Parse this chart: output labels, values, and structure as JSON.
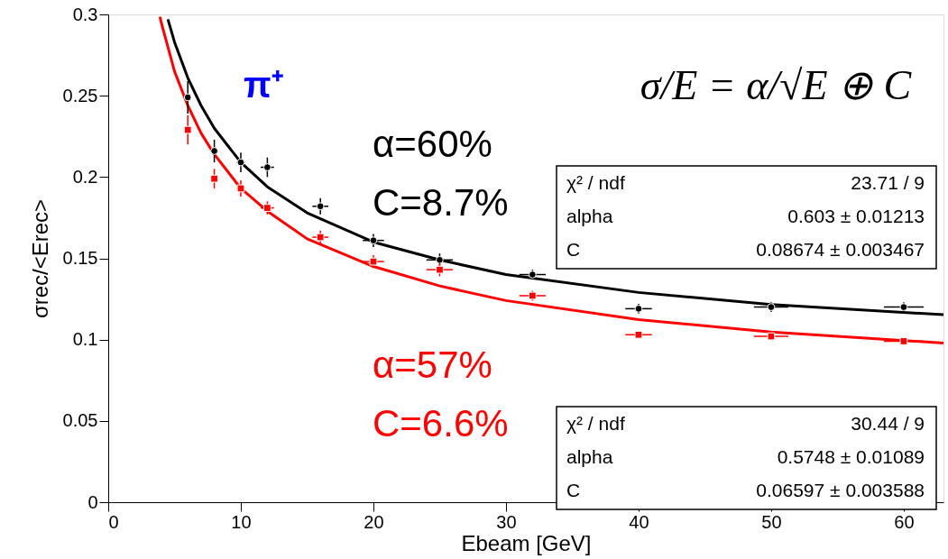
{
  "chart_data": {
    "type": "scatter",
    "xlabel": "Ebeam [GeV]",
    "ylabel": "σrec/<Erec>",
    "xlim": [
      0,
      63
    ],
    "ylim": [
      0,
      0.3
    ],
    "xticks": [
      0,
      10,
      20,
      30,
      40,
      50,
      60
    ],
    "yticks": [
      0,
      0.05,
      0.1,
      0.15,
      0.2,
      0.25,
      0.3
    ],
    "grid": false,
    "series": [
      {
        "color": "#000000",
        "marker": "circle",
        "x": [
          6,
          8,
          10,
          12,
          16,
          20,
          25,
          32,
          40,
          50,
          60
        ],
        "values": [
          0.249,
          0.216,
          0.209,
          0.206,
          0.182,
          0.161,
          0.149,
          0.14,
          0.119,
          0.12,
          0.12
        ],
        "errors": [
          0.01,
          0.007,
          0.006,
          0.006,
          0.005,
          0.004,
          0.004,
          0.003,
          0.003,
          0.003,
          0.003
        ],
        "xerrors": [
          0.2,
          0.2,
          0.3,
          0.5,
          0.6,
          0.8,
          1,
          1,
          1,
          1.3,
          1.5
        ]
      },
      {
        "color": "#ff0000",
        "marker": "square",
        "x": [
          6,
          8,
          10,
          12,
          16,
          20,
          25,
          32,
          40,
          50,
          60
        ],
        "values": [
          0.229,
          0.199,
          0.193,
          0.181,
          0.163,
          0.148,
          0.143,
          0.127,
          0.103,
          0.102,
          0.099
        ],
        "errors": [
          0.009,
          0.006,
          0.005,
          0.004,
          0.004,
          0.004,
          0.004,
          0.003,
          0.002,
          0.002,
          0.002
        ],
        "xerrors": [
          0.2,
          0.2,
          0.3,
          0.5,
          0.6,
          0.8,
          1,
          1,
          1,
          1.3,
          1.5
        ]
      },
      {
        "type": "line",
        "color": "#000000",
        "line_style": "solid",
        "x": [
          4.5,
          5,
          6,
          7,
          8,
          10,
          12,
          15,
          20,
          25,
          30,
          40,
          50,
          63
        ],
        "values": [
          0.297,
          0.283,
          0.261,
          0.244,
          0.23,
          0.209,
          0.194,
          0.178,
          0.16,
          0.149,
          0.14,
          0.129,
          0.1216,
          0.1153
        ]
      },
      {
        "type": "line",
        "color": "#ff0000",
        "line_style": "solid",
        "x": [
          3.9,
          4,
          5,
          6,
          7,
          8,
          10,
          12,
          15,
          20,
          25,
          30,
          40,
          50,
          63
        ],
        "values": [
          0.2985,
          0.295,
          0.265,
          0.244,
          0.227,
          0.214,
          0.193,
          0.179,
          0.162,
          0.145,
          0.133,
          0.124,
          0.1123,
          0.1047,
          0.0979
        ]
      }
    ],
    "annotations": [
      "π⁺",
      "σ/E = α/√E ⊕ C",
      "α=60%",
      "C=8.7%",
      "α=57%",
      "C=6.6%",
      "χ² / ndf",
      "23.71 / 9",
      "alpha",
      "0.603 ± 0.01213",
      "C",
      "0.08674 ± 0.003467",
      "χ² / ndf",
      "30.44 / 9",
      "alpha",
      "0.5748 ± 0.01089",
      "C",
      "0.06597 ± 0.003588"
    ]
  }
}
